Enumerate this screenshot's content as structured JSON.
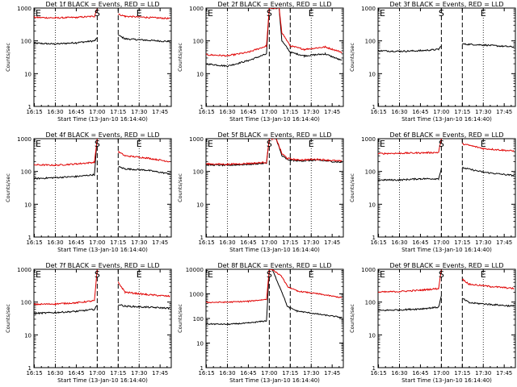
{
  "colors": {
    "events": "#000000",
    "lld": "#e00000",
    "axis": "#000000",
    "background": "#ffffff"
  },
  "chart_data": [
    {
      "type": "line",
      "title": "Det 1f BLACK = Events, RED = LLD",
      "ylabel": "Counts/sec",
      "xlabel": "Start Time (13-Jan-10 16:14:40)",
      "y_scale": "log",
      "ylim": [
        1,
        1000
      ],
      "y_ticks": [
        "1",
        "10",
        "100",
        "1000"
      ],
      "x_ticks": [
        "16:15",
        "16:30",
        "16:45",
        "17:00",
        "17:15",
        "17:30",
        "17:45"
      ],
      "markers": [
        "E",
        "S",
        "E"
      ],
      "series": [
        {
          "name": "Events",
          "color": "#000000",
          "x": [
            "16:14",
            "16:30",
            "16:45",
            "16:58",
            "17:00",
            "17:02",
            "17:13",
            "17:15",
            "17:20",
            "17:35",
            "17:52"
          ],
          "y": [
            85,
            80,
            88,
            100,
            120,
            null,
            null,
            150,
            115,
            105,
            95
          ]
        },
        {
          "name": "LLD",
          "color": "#e00000",
          "x": [
            "16:14",
            "16:30",
            "16:45",
            "16:58",
            "17:00",
            "17:02",
            "17:13",
            "17:15",
            "17:20",
            "17:35",
            "17:52"
          ],
          "y": [
            520,
            500,
            520,
            560,
            1000,
            null,
            null,
            650,
            560,
            520,
            480
          ]
        }
      ]
    },
    {
      "type": "line",
      "title": "Det 2f BLACK = Events, RED = LLD",
      "ylabel": "Counts/sec",
      "xlabel": "Start Time (13-Jan-10 16:14:40)",
      "y_scale": "log",
      "ylim": [
        1,
        1000
      ],
      "y_ticks": [
        "1",
        "10",
        "100",
        "1000"
      ],
      "x_ticks": [
        "16:15",
        "16:30",
        "16:45",
        "17:00",
        "17:15",
        "17:30",
        "17:45"
      ],
      "markers": [
        "E",
        "S",
        "E"
      ],
      "series": [
        {
          "name": "Events",
          "color": "#000000",
          "x": [
            "16:14",
            "16:30",
            "16:45",
            "16:58",
            "17:00",
            "17:02",
            "17:07",
            "17:09",
            "17:15",
            "17:25",
            "17:40",
            "17:52"
          ],
          "y": [
            20,
            17,
            25,
            40,
            1000,
            1000,
            1000,
            100,
            45,
            35,
            40,
            25
          ]
        },
        {
          "name": "LLD",
          "color": "#e00000",
          "x": [
            "16:14",
            "16:30",
            "16:45",
            "16:58",
            "17:00",
            "17:02",
            "17:07",
            "17:09",
            "17:15",
            "17:25",
            "17:40",
            "17:52"
          ],
          "y": [
            38,
            35,
            45,
            70,
            1000,
            1000,
            1000,
            180,
            70,
            55,
            65,
            45
          ]
        }
      ]
    },
    {
      "type": "line",
      "title": "Det 3f BLACK = Events, RED = LLD",
      "ylabel": "Counts/sec",
      "xlabel": "Start Time (13-Jan-10 16:14:40)",
      "y_scale": "log",
      "ylim": [
        1,
        1000
      ],
      "y_ticks": [
        "1",
        "10",
        "100",
        "1000"
      ],
      "x_ticks": [
        "16:15",
        "16:30",
        "16:45",
        "17:00",
        "17:15",
        "17:30",
        "17:45"
      ],
      "markers": [
        "E",
        "S",
        "E"
      ],
      "series": [
        {
          "name": "Events",
          "color": "#000000",
          "x": [
            "16:14",
            "16:30",
            "16:45",
            "16:58",
            "17:00",
            "17:02",
            "17:13",
            "17:15",
            "17:30",
            "17:52"
          ],
          "y": [
            50,
            48,
            50,
            55,
            70,
            null,
            null,
            80,
            75,
            65
          ]
        },
        {
          "name": "LLD",
          "color": "#e00000",
          "x": [
            "16:14",
            "17:52"
          ],
          "y": [
            null,
            null
          ]
        }
      ]
    },
    {
      "type": "line",
      "title": "Det 4f BLACK = Events, RED = LLD",
      "ylabel": "Counts/sec",
      "xlabel": "Start Time (13-Jan-10 16:14:40)",
      "y_scale": "log",
      "ylim": [
        1,
        1000
      ],
      "y_ticks": [
        "1",
        "10",
        "100",
        "1000"
      ],
      "x_ticks": [
        "16:15",
        "16:30",
        "16:45",
        "17:00",
        "17:15",
        "17:30",
        "17:45"
      ],
      "markers": [
        "E",
        "S",
        "E"
      ],
      "series": [
        {
          "name": "Events",
          "color": "#000000",
          "x": [
            "16:14",
            "16:30",
            "16:45",
            "16:58",
            "17:00",
            "17:02",
            "17:13",
            "17:15",
            "17:20",
            "17:35",
            "17:52"
          ],
          "y": [
            60,
            65,
            70,
            80,
            1000,
            null,
            null,
            140,
            120,
            110,
            85
          ]
        },
        {
          "name": "LLD",
          "color": "#e00000",
          "x": [
            "16:14",
            "16:30",
            "16:45",
            "16:58",
            "17:00",
            "17:02",
            "17:13",
            "17:15",
            "17:20",
            "17:35",
            "17:52"
          ],
          "y": [
            160,
            155,
            170,
            190,
            1000,
            null,
            null,
            400,
            300,
            260,
            200
          ]
        }
      ]
    },
    {
      "type": "line",
      "title": "Det 5f BLACK = Events, RED = LLD",
      "ylabel": "Counts/sec",
      "xlabel": "Start Time (13-Jan-10 16:14:40)",
      "y_scale": "log",
      "ylim": [
        1,
        1000
      ],
      "y_ticks": [
        "1",
        "10",
        "100",
        "1000"
      ],
      "x_ticks": [
        "16:15",
        "16:30",
        "16:45",
        "17:00",
        "17:15",
        "17:30",
        "17:45"
      ],
      "markers": [
        "E",
        "S",
        "E"
      ],
      "series": [
        {
          "name": "Events",
          "color": "#000000",
          "x": [
            "16:14",
            "16:30",
            "16:45",
            "16:58",
            "17:00",
            "17:02",
            "17:05",
            "17:09",
            "17:13",
            "17:20",
            "17:35",
            "17:52"
          ],
          "y": [
            160,
            155,
            165,
            180,
            1000,
            1000,
            1000,
            300,
            230,
            210,
            220,
            190
          ]
        },
        {
          "name": "LLD",
          "color": "#e00000",
          "x": [
            "16:14",
            "16:30",
            "16:45",
            "16:58",
            "17:00",
            "17:02",
            "17:05",
            "17:09",
            "17:13",
            "17:20",
            "17:35",
            "17:52"
          ],
          "y": [
            170,
            165,
            175,
            190,
            1000,
            1000,
            1000,
            350,
            250,
            225,
            235,
            205
          ]
        }
      ]
    },
    {
      "type": "line",
      "title": "Det 6f BLACK = Events, RED = LLD",
      "ylabel": "Counts/sec",
      "xlabel": "Start Time (13-Jan-10 16:14:40)",
      "y_scale": "log",
      "ylim": [
        1,
        1000
      ],
      "y_ticks": [
        "1",
        "10",
        "100",
        "1000"
      ],
      "x_ticks": [
        "16:15",
        "16:30",
        "16:45",
        "17:00",
        "17:15",
        "17:30",
        "17:45"
      ],
      "markers": [
        "E",
        "S",
        "E"
      ],
      "series": [
        {
          "name": "Events",
          "color": "#000000",
          "x": [
            "16:14",
            "16:30",
            "16:45",
            "16:58",
            "17:00",
            "17:02",
            "17:13",
            "17:15",
            "17:30",
            "17:52"
          ],
          "y": [
            55,
            55,
            60,
            60,
            120,
            null,
            null,
            130,
            95,
            75
          ]
        },
        {
          "name": "LLD",
          "color": "#e00000",
          "x": [
            "16:14",
            "16:30",
            "16:45",
            "16:58",
            "17:00",
            "17:02",
            "17:13",
            "17:15",
            "17:30",
            "17:52"
          ],
          "y": [
            350,
            360,
            370,
            380,
            1000,
            null,
            null,
            700,
            500,
            420
          ]
        }
      ]
    },
    {
      "type": "line",
      "title": "Det 7f BLACK = Events, RED = LLD",
      "ylabel": "Counts/sec",
      "xlabel": "Start Time (13-Jan-10 16:14:40)",
      "y_scale": "log",
      "ylim": [
        1,
        1000
      ],
      "y_ticks": [
        "1",
        "10",
        "100",
        "1000"
      ],
      "x_ticks": [
        "16:15",
        "16:30",
        "16:45",
        "17:00",
        "17:15",
        "17:30",
        "17:45"
      ],
      "markers": [
        "E",
        "S",
        "E"
      ],
      "series": [
        {
          "name": "Events",
          "color": "#000000",
          "x": [
            "16:14",
            "16:30",
            "16:45",
            "16:58",
            "17:00",
            "17:02",
            "17:13",
            "17:15",
            "17:20",
            "17:35",
            "17:52"
          ],
          "y": [
            45,
            48,
            52,
            60,
            80,
            null,
            null,
            85,
            75,
            70,
            65
          ]
        },
        {
          "name": "LLD",
          "color": "#e00000",
          "x": [
            "16:14",
            "16:30",
            "16:45",
            "16:58",
            "17:00",
            "17:02",
            "17:13",
            "17:15",
            "17:20",
            "17:35",
            "17:52"
          ],
          "y": [
            85,
            88,
            95,
            110,
            1000,
            null,
            null,
            400,
            200,
            170,
            150
          ]
        }
      ]
    },
    {
      "type": "line",
      "title": "Det 8f BLACK = Events, RED = LLD",
      "ylabel": "Counts/sec",
      "xlabel": "Start Time (13-Jan-10 16:14:40)",
      "y_scale": "log",
      "ylim": [
        1,
        10000
      ],
      "y_ticks": [
        "1",
        "10",
        "100",
        "1000",
        "10000"
      ],
      "x_ticks": [
        "16:15",
        "16:30",
        "16:45",
        "17:00",
        "17:15",
        "17:30",
        "17:45"
      ],
      "markers": [
        "E",
        "S",
        "E"
      ],
      "series": [
        {
          "name": "Events",
          "color": "#000000",
          "x": [
            "16:14",
            "16:30",
            "16:45",
            "16:58",
            "17:00",
            "17:02",
            "17:09",
            "17:13",
            "17:20",
            "17:35",
            "17:52"
          ],
          "y": [
            60,
            58,
            65,
            80,
            10000,
            10000,
            1200,
            300,
            200,
            150,
            110
          ]
        },
        {
          "name": "LLD",
          "color": "#e00000",
          "x": [
            "16:14",
            "16:30",
            "16:45",
            "16:58",
            "17:00",
            "17:02",
            "17:09",
            "17:13",
            "17:20",
            "17:35",
            "17:52"
          ],
          "y": [
            450,
            460,
            500,
            600,
            10000,
            10000,
            5000,
            2000,
            1300,
            1000,
            700
          ]
        }
      ]
    },
    {
      "type": "line",
      "title": "Det 9f BLACK = Events, RED = LLD",
      "ylabel": "Counts/sec",
      "xlabel": "Start Time (13-Jan-10 16:14:40)",
      "y_scale": "log",
      "ylim": [
        1,
        1000
      ],
      "y_ticks": [
        "1",
        "10",
        "100",
        "1000"
      ],
      "x_ticks": [
        "16:15",
        "16:30",
        "16:45",
        "17:00",
        "17:15",
        "17:30",
        "17:45"
      ],
      "markers": [
        "E",
        "S",
        "E"
      ],
      "series": [
        {
          "name": "Events",
          "color": "#000000",
          "x": [
            "16:14",
            "16:30",
            "16:45",
            "16:58",
            "17:00",
            "17:02",
            "17:13",
            "17:15",
            "17:20",
            "17:35",
            "17:52"
          ],
          "y": [
            55,
            58,
            62,
            70,
            150,
            null,
            null,
            130,
            95,
            85,
            75
          ]
        },
        {
          "name": "LLD",
          "color": "#e00000",
          "x": [
            "16:14",
            "16:30",
            "16:45",
            "16:58",
            "17:00",
            "17:02",
            "17:13",
            "17:15",
            "17:20",
            "17:35",
            "17:52"
          ],
          "y": [
            200,
            210,
            230,
            260,
            1000,
            null,
            null,
            500,
            350,
            300,
            260
          ]
        }
      ]
    }
  ]
}
